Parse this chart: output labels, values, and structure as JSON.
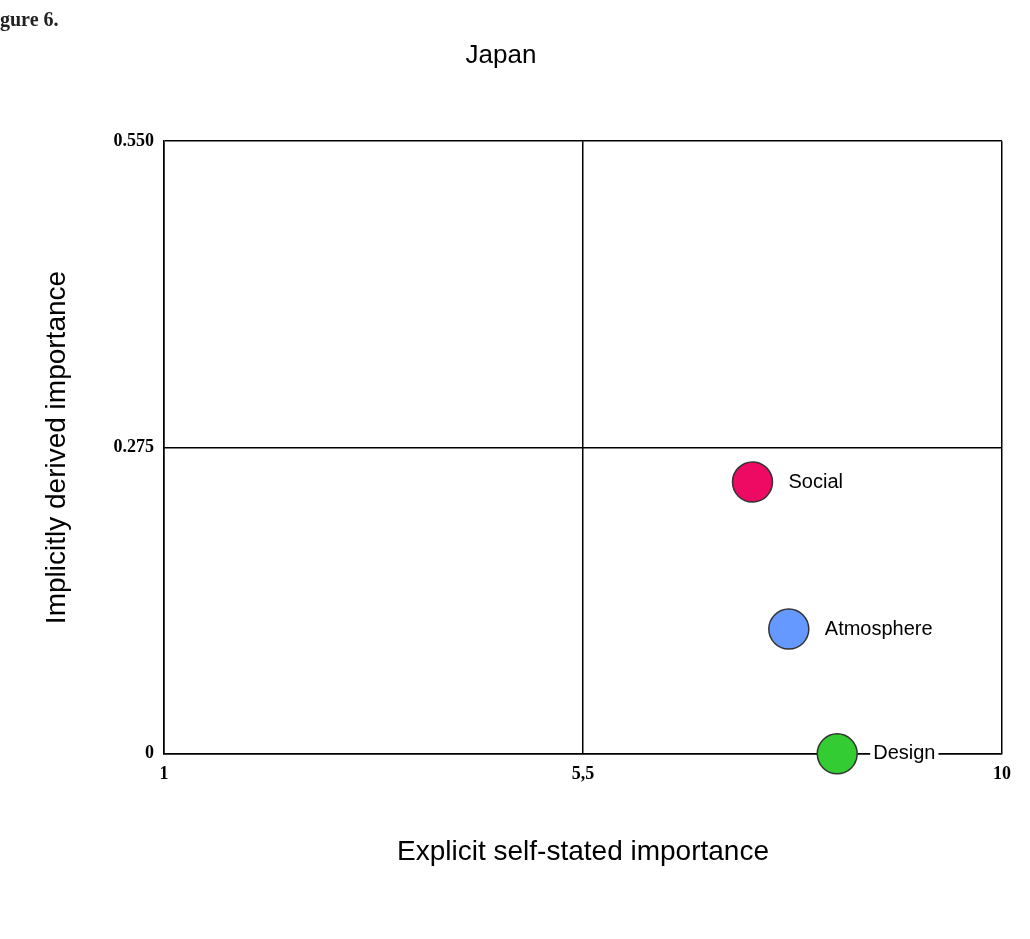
{
  "chart_data": {
    "type": "scatter",
    "title": "Japan",
    "xlabel": "Explicit self-stated importance",
    "ylabel": "Implicitly derived importance",
    "annotations": [
      "gure 6."
    ],
    "xlim": [
      1,
      10
    ],
    "xticks": [
      1,
      {
        "value": 5.5,
        "label": "5,5"
      },
      10
    ],
    "ylim": [
      0,
      0.55
    ],
    "yticks": [
      0,
      {
        "value": 0.275,
        "label": "0.275"
      },
      {
        "value": 0.55,
        "label": "0.550"
      }
    ],
    "grid": true,
    "legend": false,
    "marker": "circle",
    "series": [
      {
        "name": "Social",
        "color": "#ee0a63",
        "x": [
          7.32
        ],
        "values": [
          0.244
        ]
      },
      {
        "name": "Atmosphere",
        "color": "#6699ff",
        "x": [
          7.71
        ],
        "values": [
          0.112
        ]
      },
      {
        "name": "Design",
        "color": "#33cc33",
        "x": [
          8.23
        ],
        "values": [
          0
        ]
      }
    ]
  }
}
